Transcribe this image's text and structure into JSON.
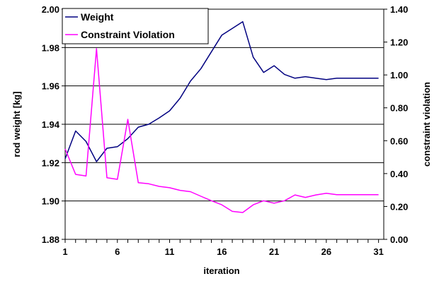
{
  "chart_data": {
    "type": "line",
    "xlabel": "iteration",
    "ylabel_left": "rod weight [kg]",
    "ylabel_right": "constraint violation",
    "x": [
      1,
      2,
      3,
      4,
      5,
      6,
      7,
      8,
      9,
      10,
      11,
      12,
      13,
      14,
      15,
      16,
      17,
      18,
      19,
      20,
      21,
      22,
      23,
      24,
      25,
      26,
      27,
      28,
      29,
      30,
      31
    ],
    "x_ticks": [
      "1",
      "6",
      "11",
      "16",
      "21",
      "26",
      "31"
    ],
    "y_left_lim": [
      1.88,
      2.0
    ],
    "y_left_ticks": [
      "1.88",
      "1.90",
      "1.92",
      "1.94",
      "1.96",
      "1.98",
      "2.00"
    ],
    "y_right_lim": [
      0.0,
      1.4
    ],
    "y_right_ticks": [
      "0.00",
      "0.20",
      "0.40",
      "0.60",
      "0.80",
      "1.00",
      "1.20",
      "1.40"
    ],
    "grid": "horizontal",
    "legend_position": "top-left",
    "series": [
      {
        "name": "Weight",
        "axis": "left",
        "color": "#000080",
        "values": [
          1.922,
          1.9365,
          1.931,
          1.9205,
          1.9275,
          1.9283,
          1.9325,
          1.9385,
          1.94,
          1.9433,
          1.947,
          1.9536,
          1.9625,
          1.969,
          1.9778,
          1.9865,
          1.99,
          1.9935,
          1.975,
          1.967,
          1.9705,
          1.966,
          1.964,
          1.9648,
          1.964,
          1.9633,
          1.964,
          1.964,
          1.964,
          1.964,
          1.964
        ]
      },
      {
        "name": "Constraint Violation",
        "axis": "right",
        "color": "#FF00FF",
        "values": [
          0.55,
          0.395,
          0.385,
          1.16,
          0.375,
          0.365,
          0.73,
          0.345,
          0.338,
          0.322,
          0.314,
          0.298,
          0.29,
          0.262,
          0.235,
          0.21,
          0.17,
          0.163,
          0.21,
          0.235,
          0.22,
          0.235,
          0.27,
          0.255,
          0.27,
          0.28,
          0.272,
          0.272,
          0.272,
          0.272,
          0.272
        ]
      }
    ]
  }
}
